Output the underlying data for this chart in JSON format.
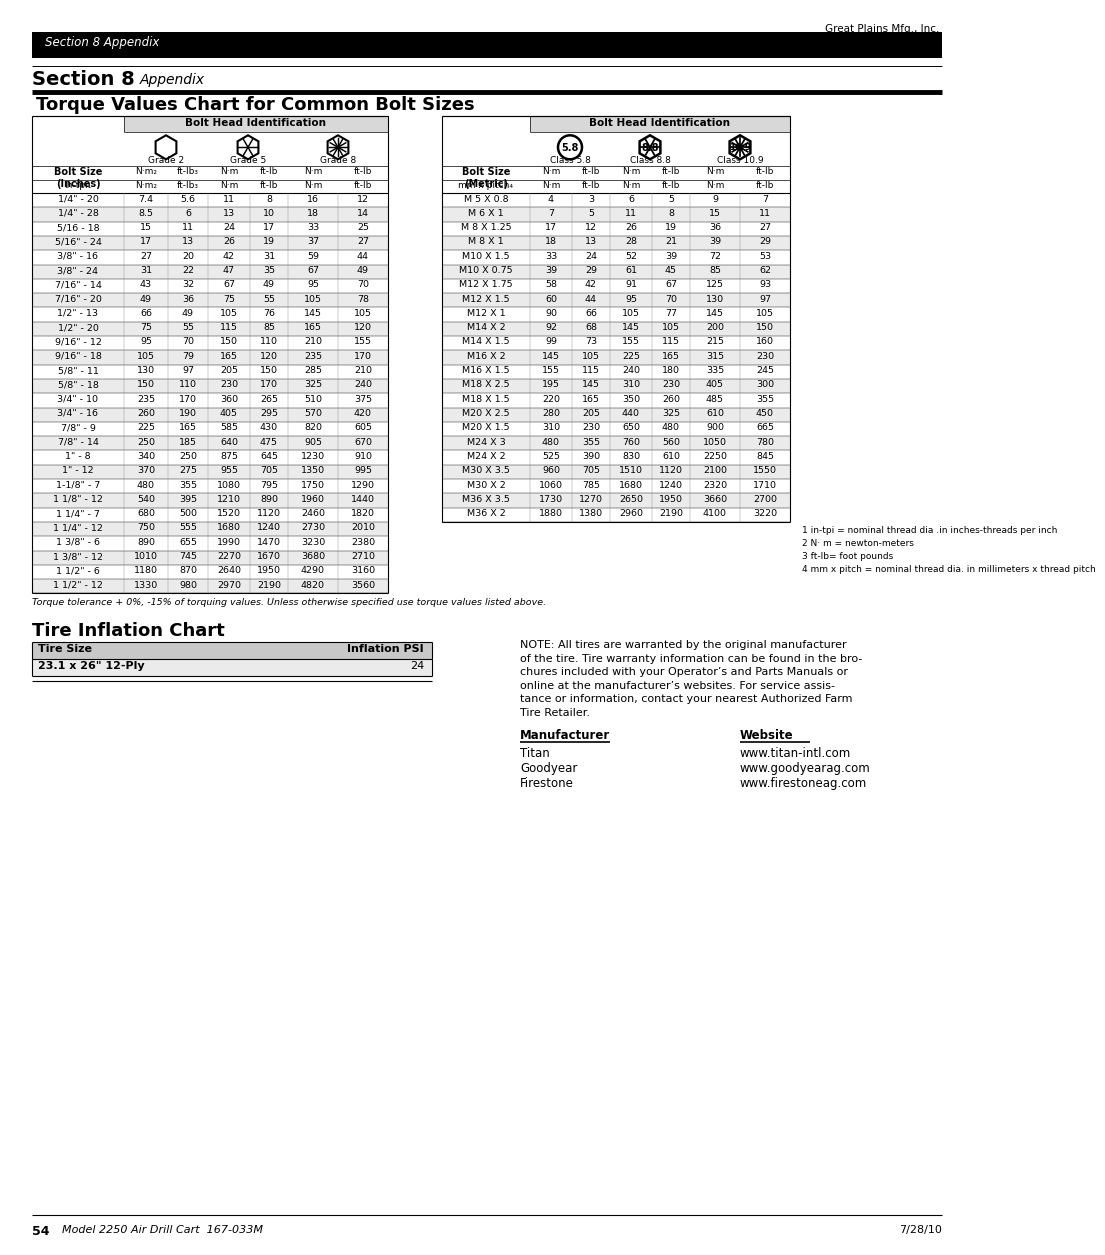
{
  "page_header_company": "Great Plains Mfg., Inc.",
  "page_header_section": "Section 8 Appendix",
  "torque_title": "Torque Values Chart for Common Bolt Sizes",
  "tire_title": "Tire Inflation Chart",
  "inches_col_header": "Bolt Head Identification",
  "metric_col_header": "Bolt Head Identification",
  "inches_rows": [
    [
      "1/4\" - 20",
      "7.4",
      "5.6",
      "11",
      "8",
      "16",
      "12"
    ],
    [
      "1/4\" - 28",
      "8.5",
      "6",
      "13",
      "10",
      "18",
      "14"
    ],
    [
      "5/16 - 18",
      "15",
      "11",
      "24",
      "17",
      "33",
      "25"
    ],
    [
      "5/16\" - 24",
      "17",
      "13",
      "26",
      "19",
      "37",
      "27"
    ],
    [
      "3/8\" - 16",
      "27",
      "20",
      "42",
      "31",
      "59",
      "44"
    ],
    [
      "3/8\" - 24",
      "31",
      "22",
      "47",
      "35",
      "67",
      "49"
    ],
    [
      "7/16\" - 14",
      "43",
      "32",
      "67",
      "49",
      "95",
      "70"
    ],
    [
      "7/16\" - 20",
      "49",
      "36",
      "75",
      "55",
      "105",
      "78"
    ],
    [
      "1/2\" - 13",
      "66",
      "49",
      "105",
      "76",
      "145",
      "105"
    ],
    [
      "1/2\" - 20",
      "75",
      "55",
      "115",
      "85",
      "165",
      "120"
    ],
    [
      "9/16\" - 12",
      "95",
      "70",
      "150",
      "110",
      "210",
      "155"
    ],
    [
      "9/16\" - 18",
      "105",
      "79",
      "165",
      "120",
      "235",
      "170"
    ],
    [
      "5/8\" - 11",
      "130",
      "97",
      "205",
      "150",
      "285",
      "210"
    ],
    [
      "5/8\" - 18",
      "150",
      "110",
      "230",
      "170",
      "325",
      "240"
    ],
    [
      "3/4\" - 10",
      "235",
      "170",
      "360",
      "265",
      "510",
      "375"
    ],
    [
      "3/4\" - 16",
      "260",
      "190",
      "405",
      "295",
      "570",
      "420"
    ],
    [
      "7/8\" - 9",
      "225",
      "165",
      "585",
      "430",
      "820",
      "605"
    ],
    [
      "7/8\" - 14",
      "250",
      "185",
      "640",
      "475",
      "905",
      "670"
    ],
    [
      "1\" - 8",
      "340",
      "250",
      "875",
      "645",
      "1230",
      "910"
    ],
    [
      "1\" - 12",
      "370",
      "275",
      "955",
      "705",
      "1350",
      "995"
    ],
    [
      "1-1/8\" - 7",
      "480",
      "355",
      "1080",
      "795",
      "1750",
      "1290"
    ],
    [
      "1 1/8\" - 12",
      "540",
      "395",
      "1210",
      "890",
      "1960",
      "1440"
    ],
    [
      "1 1/4\" - 7",
      "680",
      "500",
      "1520",
      "1120",
      "2460",
      "1820"
    ],
    [
      "1 1/4\" - 12",
      "750",
      "555",
      "1680",
      "1240",
      "2730",
      "2010"
    ],
    [
      "1 3/8\" - 6",
      "890",
      "655",
      "1990",
      "1470",
      "3230",
      "2380"
    ],
    [
      "1 3/8\" - 12",
      "1010",
      "745",
      "2270",
      "1670",
      "3680",
      "2710"
    ],
    [
      "1 1/2\" - 6",
      "1180",
      "870",
      "2640",
      "1950",
      "4290",
      "3160"
    ],
    [
      "1 1/2\" - 12",
      "1330",
      "980",
      "2970",
      "2190",
      "4820",
      "3560"
    ]
  ],
  "metric_rows": [
    [
      "M 5 X 0.8",
      "4",
      "3",
      "6",
      "5",
      "9",
      "7"
    ],
    [
      "M 6 X 1",
      "7",
      "5",
      "11",
      "8",
      "15",
      "11"
    ],
    [
      "M 8 X 1.25",
      "17",
      "12",
      "26",
      "19",
      "36",
      "27"
    ],
    [
      "M 8 X 1",
      "18",
      "13",
      "28",
      "21",
      "39",
      "29"
    ],
    [
      "M10 X 1.5",
      "33",
      "24",
      "52",
      "39",
      "72",
      "53"
    ],
    [
      "M10 X 0.75",
      "39",
      "29",
      "61",
      "45",
      "85",
      "62"
    ],
    [
      "M12 X 1.75",
      "58",
      "42",
      "91",
      "67",
      "125",
      "93"
    ],
    [
      "M12 X 1.5",
      "60",
      "44",
      "95",
      "70",
      "130",
      "97"
    ],
    [
      "M12 X 1",
      "90",
      "66",
      "105",
      "77",
      "145",
      "105"
    ],
    [
      "M14 X 2",
      "92",
      "68",
      "145",
      "105",
      "200",
      "150"
    ],
    [
      "M14 X 1.5",
      "99",
      "73",
      "155",
      "115",
      "215",
      "160"
    ],
    [
      "M16 X 2",
      "145",
      "105",
      "225",
      "165",
      "315",
      "230"
    ],
    [
      "M16 X 1.5",
      "155",
      "115",
      "240",
      "180",
      "335",
      "245"
    ],
    [
      "M18 X 2.5",
      "195",
      "145",
      "310",
      "230",
      "405",
      "300"
    ],
    [
      "M18 X 1.5",
      "220",
      "165",
      "350",
      "260",
      "485",
      "355"
    ],
    [
      "M20 X 2.5",
      "280",
      "205",
      "440",
      "325",
      "610",
      "450"
    ],
    [
      "M20 X 1.5",
      "310",
      "230",
      "650",
      "480",
      "900",
      "665"
    ],
    [
      "M24 X 3",
      "480",
      "355",
      "760",
      "560",
      "1050",
      "780"
    ],
    [
      "M24 X 2",
      "525",
      "390",
      "830",
      "610",
      "2250",
      "845"
    ],
    [
      "M30 X 3.5",
      "960",
      "705",
      "1510",
      "1120",
      "2100",
      "1550"
    ],
    [
      "M30 X 2",
      "1060",
      "785",
      "1680",
      "1240",
      "2320",
      "1710"
    ],
    [
      "M36 X 3.5",
      "1730",
      "1270",
      "2650",
      "1950",
      "3660",
      "2700"
    ],
    [
      "M36 X 2",
      "1880",
      "1380",
      "2960",
      "2190",
      "4100",
      "3220"
    ]
  ],
  "footnotes": [
    "1 in-tpi = nominal thread dia .in inches-threads per inch",
    "2 N· m = newton-meters",
    "3 ft-lb= foot pounds",
    "4 mm x pitch = nominal thread dia. in millimeters x thread pitch"
  ],
  "torque_tolerance_note": "Torque tolerance + 0%, -15% of torquing values. Unless otherwise specified use torque values listed above.",
  "tire_table_headers": [
    "Tire Size",
    "Inflation PSI"
  ],
  "tire_rows": [
    [
      "23.1 x 26\" 12-Ply",
      "24"
    ]
  ],
  "tire_note_lines": [
    "NOTE: All tires are warranted by the original manufacturer",
    "of the tire. Tire warranty information can be found in the bro-",
    "chures included with your Operator’s and Parts Manuals or",
    "online at the manufacturer’s websites. For service assis-",
    "tance or information, contact your nearest Authorized Farm",
    "Tire Retailer."
  ],
  "manufacturer_label": "Manufacturer",
  "website_label": "Website",
  "manufacturers": [
    "Titan",
    "Goodyear",
    "Firestone"
  ],
  "websites": [
    "www.titan-intl.com",
    "www.goodyearag.com",
    "www.firestoneag.com"
  ],
  "footer_page": "54",
  "footer_model": "Model 2250 Air Drill Cart  167-033M",
  "footer_date": "7/28/10"
}
